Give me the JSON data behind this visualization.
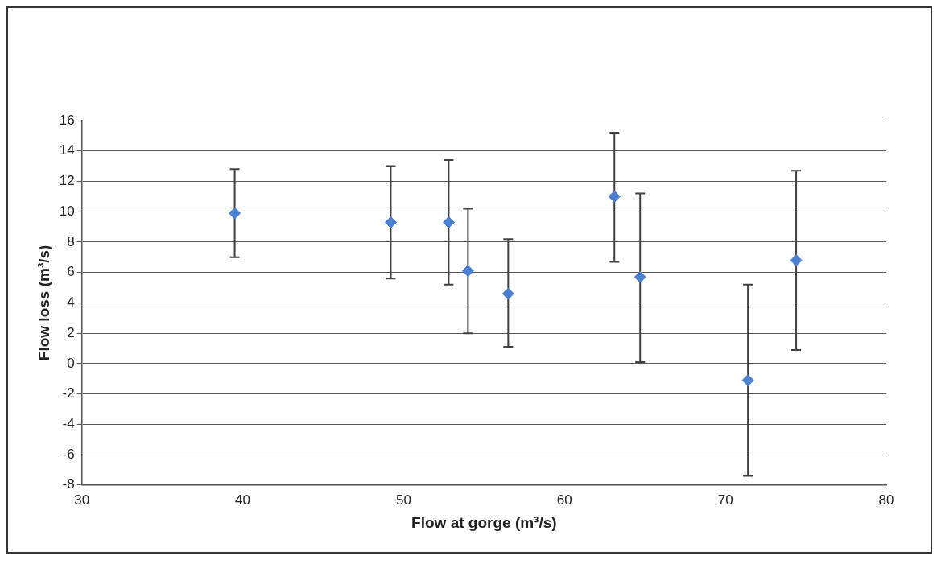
{
  "chart_data": {
    "type": "scatter",
    "xlabel": "Flow at gorge (m³/s)",
    "ylabel": "Flow loss (m³/s)",
    "x": [
      39.5,
      49.2,
      52.8,
      54.0,
      56.5,
      63.1,
      64.7,
      71.4,
      74.4
    ],
    "values": [
      9.9,
      9.3,
      9.3,
      6.1,
      4.6,
      11.0,
      5.7,
      -1.1,
      6.8
    ],
    "errors": [
      [
        7.0,
        12.8
      ],
      [
        5.6,
        13.0
      ],
      [
        5.2,
        13.4
      ],
      [
        2.0,
        10.2
      ],
      [
        1.1,
        8.2
      ],
      [
        6.7,
        15.2
      ],
      [
        0.1,
        11.2
      ],
      [
        -7.4,
        5.2
      ],
      [
        0.9,
        12.7
      ]
    ],
    "color": "#4a7fd4",
    "marker": "diamond",
    "xlim": [
      30,
      80
    ],
    "xticks": [
      30,
      40,
      50,
      60,
      70,
      80
    ],
    "ylim": [
      -8,
      16
    ],
    "yticks": [
      -8,
      -6,
      -4,
      -2,
      0,
      2,
      4,
      6,
      8,
      10,
      12,
      14,
      16
    ],
    "grid": "y",
    "legend": false
  }
}
